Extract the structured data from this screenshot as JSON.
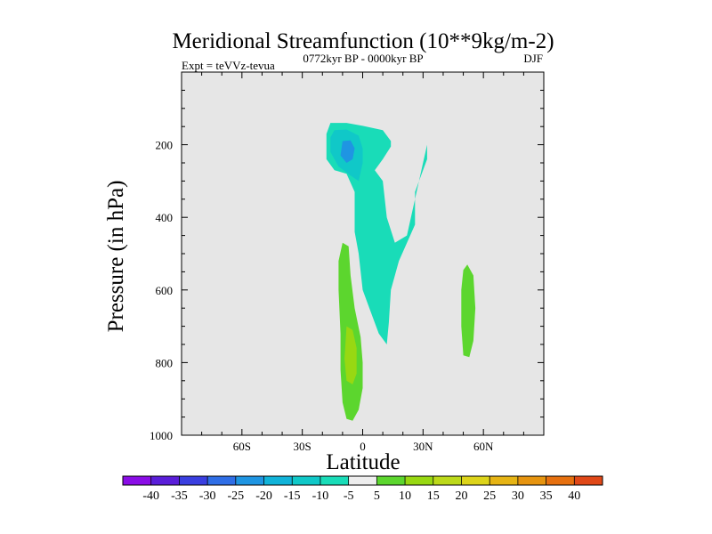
{
  "chart_data": {
    "type": "filled-contour",
    "title": "Meridional Streamfunction (10**9kg/m-2)",
    "left_label": "Expt = teVVz-tevua",
    "center_label": "0772kyr BP - 0000kyr BP",
    "right_label": "DJF",
    "xlabel": "Latitude",
    "ylabel": "Pressure (in hPa)",
    "xlim": [
      -90,
      90
    ],
    "ylim": [
      1000,
      0
    ],
    "x_ticks": [
      -60,
      -30,
      0,
      30,
      60
    ],
    "x_tick_labels": [
      "60S",
      "30S",
      "0",
      "30N",
      "60N"
    ],
    "y_ticks": [
      200,
      400,
      600,
      800,
      1000
    ],
    "y_tick_labels": [
      "200",
      "400",
      "600",
      "800",
      "1000"
    ],
    "background_color": "#e6e6e6",
    "colorbar": {
      "labels": [
        "-40",
        "-35",
        "-30",
        "-25",
        "-20",
        "-15",
        "-10",
        "-5",
        "5",
        "10",
        "15",
        "20",
        "25",
        "30",
        "35",
        "40"
      ],
      "colors": [
        "#8a0de6",
        "#5a1ed9",
        "#3a3fe0",
        "#2f6ee6",
        "#1f95e2",
        "#11b3d9",
        "#10c8c8",
        "#19dcb8",
        "#eeeeee",
        "#5cd62e",
        "#98d812",
        "#bcd91a",
        "#ddd41a",
        "#e6b414",
        "#e6940f",
        "#e6700f",
        "#e04818"
      ]
    },
    "features": [
      {
        "name": "negative-cell-upper-equatorial",
        "level": -10,
        "color": "#19dcb8",
        "points": [
          [
            -16,
            140
          ],
          [
            -8,
            140
          ],
          [
            0,
            148
          ],
          [
            10,
            160
          ],
          [
            14,
            190
          ],
          [
            14,
            205
          ],
          [
            10,
            240
          ],
          [
            6,
            270
          ],
          [
            10,
            300
          ],
          [
            12,
            400
          ],
          [
            16,
            470
          ],
          [
            22,
            450
          ],
          [
            26,
            350
          ],
          [
            30,
            250
          ],
          [
            32,
            200
          ],
          [
            32,
            240
          ],
          [
            26,
            330
          ],
          [
            26,
            420
          ],
          [
            18,
            520
          ],
          [
            14,
            600
          ],
          [
            13,
            690
          ],
          [
            12,
            750
          ],
          [
            8,
            720
          ],
          [
            4,
            660
          ],
          [
            0,
            600
          ],
          [
            -2,
            500
          ],
          [
            -4,
            440
          ],
          [
            -4,
            330
          ],
          [
            -8,
            280
          ],
          [
            -14,
            270
          ],
          [
            -18,
            240
          ],
          [
            -18,
            170
          ]
        ]
      },
      {
        "name": "negative-core-upper",
        "level": -15,
        "color": "#10c8c8",
        "points": [
          [
            -14,
            160
          ],
          [
            -8,
            158
          ],
          [
            -2,
            175
          ],
          [
            0,
            210
          ],
          [
            0,
            250
          ],
          [
            -2,
            300
          ],
          [
            -6,
            285
          ],
          [
            -12,
            260
          ],
          [
            -16,
            220
          ],
          [
            -16,
            180
          ]
        ]
      },
      {
        "name": "negative-core-inner",
        "level": -20,
        "color": "#1f95e2",
        "points": [
          [
            -10,
            190
          ],
          [
            -6,
            188
          ],
          [
            -4,
            210
          ],
          [
            -5,
            240
          ],
          [
            -8,
            250
          ],
          [
            -11,
            230
          ]
        ]
      },
      {
        "name": "positive-cell-lower-equatorial",
        "level": 5,
        "color": "#5cd62e",
        "points": [
          [
            -10,
            470
          ],
          [
            -7,
            480
          ],
          [
            -6,
            560
          ],
          [
            -4,
            650
          ],
          [
            -1,
            730
          ],
          [
            0,
            800
          ],
          [
            0,
            870
          ],
          [
            -2,
            930
          ],
          [
            -5,
            960
          ],
          [
            -8,
            955
          ],
          [
            -10,
            910
          ],
          [
            -11,
            820
          ],
          [
            -11,
            720
          ],
          [
            -12,
            600
          ],
          [
            -12,
            520
          ]
        ]
      },
      {
        "name": "positive-core-lower",
        "level": 10,
        "color": "#98d812",
        "points": [
          [
            -8,
            700
          ],
          [
            -5,
            710
          ],
          [
            -3,
            760
          ],
          [
            -3,
            830
          ],
          [
            -5,
            860
          ],
          [
            -8,
            850
          ],
          [
            -9,
            790
          ]
        ]
      },
      {
        "name": "positive-cell-midlatitude",
        "level": 5,
        "color": "#5cd62e",
        "points": [
          [
            52,
            530
          ],
          [
            55,
            560
          ],
          [
            56,
            650
          ],
          [
            55,
            740
          ],
          [
            53,
            785
          ],
          [
            50,
            780
          ],
          [
            49,
            700
          ],
          [
            49,
            600
          ],
          [
            50,
            545
          ]
        ]
      }
    ]
  }
}
